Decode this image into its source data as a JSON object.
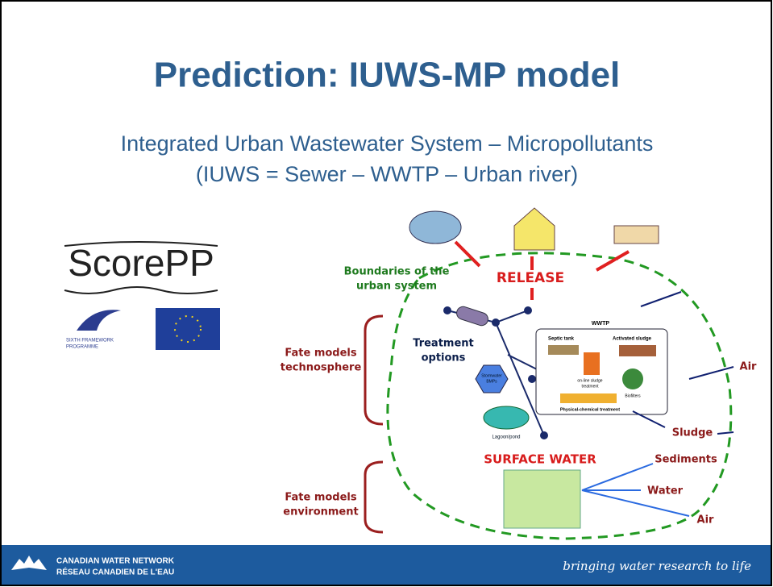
{
  "header": {
    "title": "Prediction: IUWS-MP model",
    "subtitle": [
      "Integrated Urban Wastewater System – Micropollutants",
      "(IUWS = Sewer – WWTP – Urban river)"
    ]
  },
  "logos": {
    "scorepp": "ScorePP",
    "framework": [
      "SIXTH FRAMEWORK",
      "PROGRAMME"
    ]
  },
  "diagram": {
    "boundary": [
      "Boundaries of the",
      "urban system"
    ],
    "release": "RELEASE",
    "treatment": [
      "Treatment",
      "options"
    ],
    "wwtp": "WWTP",
    "septic": "Septic tank",
    "activated": "Activated sludge",
    "online": [
      "on-line sludge",
      "treatment"
    ],
    "biofilters": "Biofilters",
    "physchem": "Physical-chemical treatment",
    "stormwater": [
      "Stormwater",
      "BMPs"
    ],
    "lagoon": "Lagoon/pond",
    "technosphere": [
      "Fate models",
      "technosphere"
    ],
    "environment": [
      "Fate models",
      "environment"
    ],
    "surface": "SURFACE WATER",
    "air1": "Air",
    "sludge": "Sludge",
    "sediments": "Sediments",
    "water": "Water",
    "air2": "Air"
  },
  "footer": {
    "network": [
      "CANADIAN WATER NETWORK",
      "RÉSEAU CANADIEN DE L'EAU"
    ],
    "tagline": "bringing water research to life"
  }
}
